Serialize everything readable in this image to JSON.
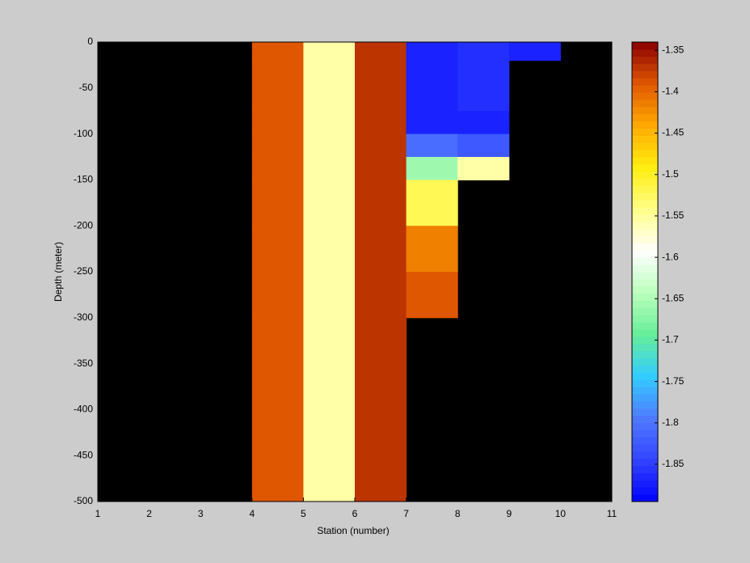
{
  "chart_data": {
    "type": "heatmap",
    "xlabel": "Station (number)",
    "ylabel": "Depth (meter)",
    "xbins": [
      1,
      2,
      3,
      4,
      5,
      6,
      7,
      8,
      9,
      10,
      11
    ],
    "ybins": [
      0,
      -20,
      -75,
      -100,
      -125,
      -150,
      -200,
      -250,
      -300,
      -500
    ],
    "values": [
      [
        null,
        null,
        null,
        -1.39,
        -1.555,
        -1.37,
        -1.87,
        -1.86,
        -1.87,
        null
      ],
      [
        null,
        null,
        null,
        -1.39,
        -1.555,
        -1.37,
        -1.87,
        -1.86,
        null,
        null
      ],
      [
        null,
        null,
        null,
        -1.39,
        -1.555,
        -1.37,
        -1.87,
        -1.87,
        null,
        null
      ],
      [
        null,
        null,
        null,
        -1.39,
        -1.555,
        -1.37,
        -1.805,
        -1.825,
        null,
        null
      ],
      [
        null,
        null,
        null,
        -1.39,
        -1.555,
        -1.37,
        -1.66,
        -1.555,
        null,
        null
      ],
      [
        null,
        null,
        null,
        -1.39,
        -1.555,
        -1.37,
        -1.52,
        null,
        null,
        null
      ],
      [
        null,
        null,
        null,
        -1.39,
        -1.555,
        -1.37,
        -1.415,
        null,
        null,
        null
      ],
      [
        null,
        null,
        null,
        -1.39,
        -1.555,
        -1.37,
        -1.39,
        null,
        null,
        null
      ],
      [
        null,
        null,
        null,
        -1.39,
        -1.555,
        -1.37,
        null,
        null,
        null,
        null
      ]
    ],
    "xlim": [
      1,
      11
    ],
    "xticks": [
      1,
      2,
      3,
      4,
      5,
      6,
      7,
      8,
      9,
      10,
      11
    ],
    "ylim": [
      -500,
      0
    ],
    "yticks": [
      -500,
      -450,
      -400,
      -350,
      -300,
      -250,
      -200,
      -150,
      -100,
      -50,
      0
    ],
    "zlim": [
      -1.895,
      -1.34
    ],
    "zticks": [
      -1.85,
      -1.8,
      -1.75,
      -1.7,
      -1.65,
      -1.6,
      -1.55,
      -1.5,
      -1.45,
      -1.4,
      -1.35
    ],
    "colormap": [
      "#0000ff",
      "#3344ff",
      "#4f7aff",
      "#33ccff",
      "#66ee99",
      "#bbffbb",
      "#ffffff",
      "#ffff88",
      "#ffee11",
      "#ffaa00",
      "#e05800",
      "#880000"
    ],
    "nan_color": "#000000"
  }
}
